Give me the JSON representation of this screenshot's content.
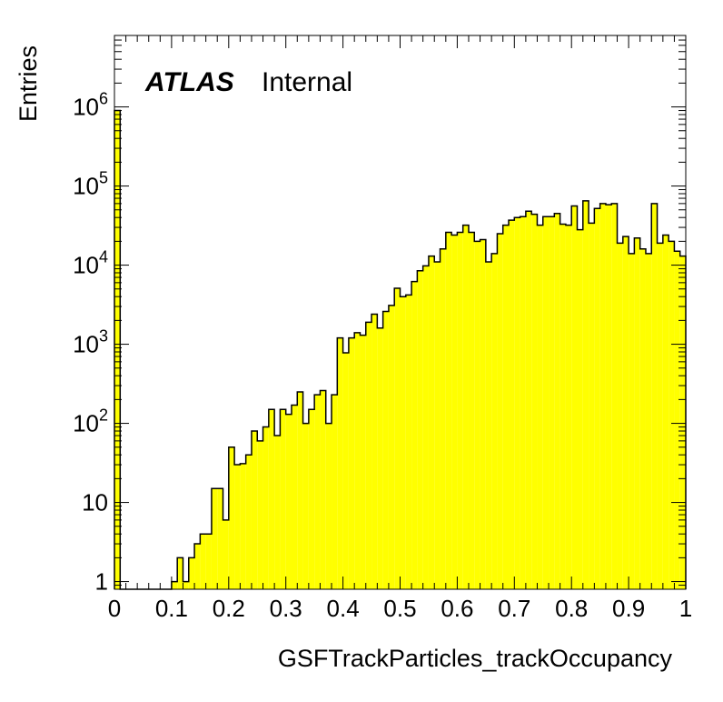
{
  "chart_data": {
    "type": "bar",
    "xlabel": "GSFTrackParticles_trackOccupancy",
    "ylabel": "Entries",
    "xlim": [
      0,
      1
    ],
    "ylim": [
      0.8,
      8000000
    ],
    "yscale": "log",
    "annotation": {
      "experiment": "ATLAS",
      "status": "Internal"
    },
    "x_ticks": [
      "0",
      "0.1",
      "0.2",
      "0.3",
      "0.4",
      "0.5",
      "0.6",
      "0.7",
      "0.8",
      "0.9",
      "1"
    ],
    "y_ticks": [
      {
        "value": 1,
        "base": "1",
        "exp": ""
      },
      {
        "value": 10,
        "base": "10",
        "exp": ""
      },
      {
        "value": 100,
        "base": "10",
        "exp": "2"
      },
      {
        "value": 1000,
        "base": "10",
        "exp": "3"
      },
      {
        "value": 10000,
        "base": "10",
        "exp": "4"
      },
      {
        "value": 100000,
        "base": "10",
        "exp": "5"
      },
      {
        "value": 1000000,
        "base": "10",
        "exp": "6"
      }
    ],
    "bin_width": 0.01,
    "fill_color": "#ffff00",
    "line_color": "#000000",
    "bins_x_low": [
      0.0,
      0.01,
      0.02,
      0.03,
      0.04,
      0.05,
      0.06,
      0.07,
      0.08,
      0.09,
      0.1,
      0.11,
      0.12,
      0.13,
      0.14,
      0.15,
      0.16,
      0.17,
      0.18,
      0.19,
      0.2,
      0.21,
      0.22,
      0.23,
      0.24,
      0.25,
      0.26,
      0.27,
      0.28,
      0.29,
      0.3,
      0.31,
      0.32,
      0.33,
      0.34,
      0.35,
      0.36,
      0.37,
      0.38,
      0.39,
      0.4,
      0.41,
      0.42,
      0.43,
      0.44,
      0.45,
      0.46,
      0.47,
      0.48,
      0.49,
      0.5,
      0.51,
      0.52,
      0.53,
      0.54,
      0.55,
      0.56,
      0.57,
      0.58,
      0.59,
      0.6,
      0.61,
      0.62,
      0.63,
      0.64,
      0.65,
      0.66,
      0.67,
      0.68,
      0.69,
      0.7,
      0.71,
      0.72,
      0.73,
      0.74,
      0.75,
      0.76,
      0.77,
      0.78,
      0.79,
      0.8,
      0.81,
      0.82,
      0.83,
      0.84,
      0.85,
      0.86,
      0.87,
      0.88,
      0.89,
      0.9,
      0.91,
      0.92,
      0.93,
      0.94,
      0.95,
      0.96,
      0.97,
      0.98,
      0.99
    ],
    "values": [
      900000,
      0,
      0,
      0,
      0,
      0,
      0,
      0,
      0,
      0,
      1,
      2,
      1,
      2,
      3,
      4,
      4,
      15,
      15,
      6,
      50,
      30,
      31,
      40,
      80,
      60,
      90,
      150,
      70,
      150,
      130,
      170,
      250,
      100,
      150,
      230,
      260,
      100,
      230,
      1200,
      780,
      1200,
      1400,
      1300,
      1900,
      2400,
      1600,
      2600,
      3100,
      5100,
      4000,
      4200,
      6200,
      8500,
      9800,
      13000,
      11000,
      16000,
      26000,
      24000,
      26000,
      32000,
      26000,
      20000,
      21000,
      11000,
      14000,
      25000,
      32000,
      37000,
      40000,
      41000,
      48000,
      44000,
      32000,
      41000,
      41000,
      45000,
      33000,
      32000,
      56000,
      28000,
      65000,
      34000,
      52000,
      60000,
      58000,
      60000,
      19000,
      23000,
      14000,
      22000,
      16000,
      14000,
      60000,
      19000,
      24000,
      20000,
      15000,
      13000
    ]
  }
}
